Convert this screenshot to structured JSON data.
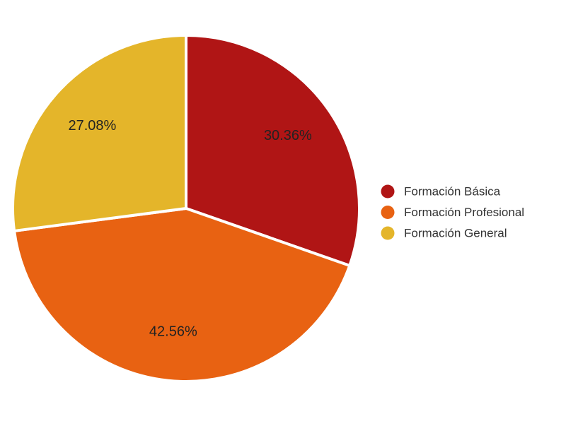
{
  "chart_data": {
    "type": "pie",
    "categories": [
      "Formación Básica",
      "Formación Profesional",
      "Formación General"
    ],
    "values": [
      30.36,
      42.56,
      27.08
    ],
    "value_labels": [
      "30.36%",
      "42.56%",
      "27.08%"
    ],
    "colors": [
      "#b01515",
      "#e86212",
      "#e4b52a"
    ],
    "legend": "right"
  }
}
